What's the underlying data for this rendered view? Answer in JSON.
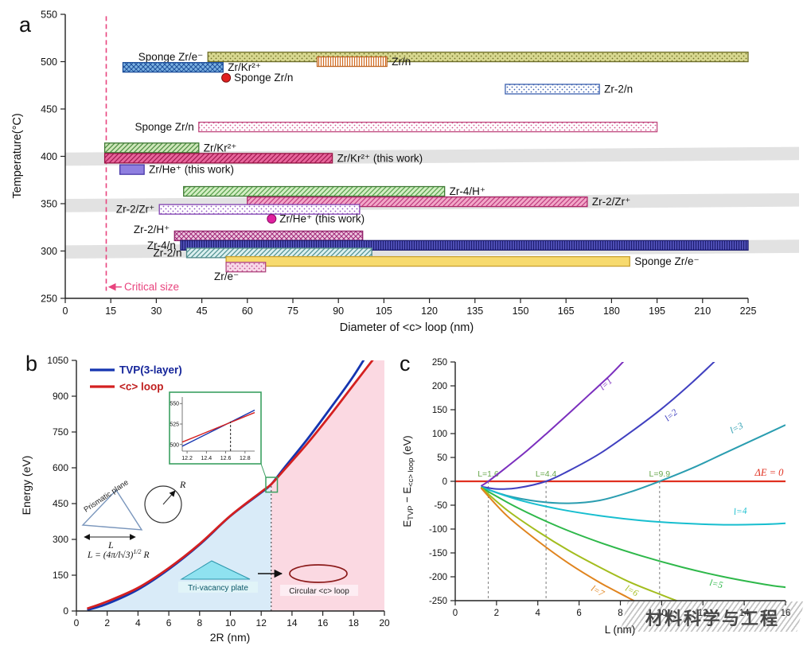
{
  "figure": {
    "panel_letters": {
      "a": "a",
      "b": "b",
      "c": "c"
    },
    "watermark": "材料科学与工程"
  },
  "chart_data": [
    {
      "id": "panel_a",
      "type": "bar",
      "xlabel": "Diameter of <c> loop (nm)",
      "ylabel": "Temperature(°C)",
      "xlim": [
        0,
        225
      ],
      "xtick_step": 15,
      "ylim": [
        250,
        550
      ],
      "ytick_step": 50,
      "grid": false,
      "critical_size": {
        "x_nm": 13.5,
        "label": "Critical size",
        "color": "#e8447e"
      },
      "shaded_bands_T": [
        [
          292,
          306
        ],
        [
          341,
          355
        ],
        [
          390,
          404
        ]
      ],
      "band_skew_T": 6,
      "patterns": {
        "stipple-olive": {
          "type": "dots",
          "bg": "#d8d890",
          "fg": "#70702a"
        },
        "cross-blue": {
          "type": "cross",
          "bg": "#7db3e2",
          "fg": "#1d4e9a"
        },
        "vlines-orange": {
          "type": "vlines",
          "bg": "#ffffff",
          "fg": "#d2691e"
        },
        "stipple-blue": {
          "type": "dots",
          "bg": "#ffffff",
          "fg": "#3a5fae"
        },
        "stipple-pink": {
          "type": "dots",
          "bg": "#ffffff",
          "fg": "#d2538c"
        },
        "diag-green": {
          "type": "diag",
          "bg": "#cfe7ba",
          "fg": "#4a8c3f"
        },
        "diag-crimson": {
          "type": "diag",
          "bg": "#e8669c",
          "fg": "#a01850"
        },
        "diag-green2": {
          "type": "diag",
          "bg": "#d4eec4",
          "fg": "#55a04a"
        },
        "diag-pink": {
          "type": "diag",
          "bg": "#f2a8c8",
          "fg": "#c03c80"
        },
        "stipple-purple": {
          "type": "dots",
          "bg": "#ffffff",
          "fg": "#8f4fc0"
        },
        "cross-pink": {
          "type": "cross",
          "bg": "#efc8e0",
          "fg": "#a02878"
        },
        "vlines-navy": {
          "type": "vlines",
          "bg": "#5353bb",
          "fg": "#1d1d70"
        },
        "diag-teal": {
          "type": "diag",
          "bg": "#dcf0f0",
          "fg": "#4f9090"
        },
        "stipple-pink2": {
          "type": "dots",
          "bg": "#f8d8e8",
          "fg": "#c05090"
        }
      },
      "bars": [
        {
          "label": "Sponge Zr/e⁻",
          "range_nm": [
            47,
            225
          ],
          "T": 505,
          "pattern": "stipple-olive",
          "edge": "#6e6e2a",
          "side": "left"
        },
        {
          "label": "Zr/Kr²⁺",
          "range_nm": [
            19,
            52
          ],
          "T": 494,
          "pattern": "cross-blue",
          "edge": "#1d4e9a",
          "side": "right"
        },
        {
          "label": "Zr/n",
          "range_nm": [
            83,
            106
          ],
          "T": 500,
          "pattern": "vlines-orange",
          "edge": "#c06a28",
          "side": "right"
        },
        {
          "label": "Zr-2/n",
          "range_nm": [
            145,
            176
          ],
          "T": 471,
          "pattern": "stipple-blue",
          "edge": "#3a5fae",
          "side": "right"
        },
        {
          "label": "Sponge Zr/n",
          "range_nm": [
            44,
            195
          ],
          "T": 431,
          "pattern": "stipple-pink",
          "edge": "#c0487e",
          "side": "left"
        },
        {
          "label": "Zr/Kr²⁺",
          "range_nm": [
            13,
            44
          ],
          "T": 409,
          "pattern": "diag-green",
          "edge": "#3f7a35",
          "side": "right"
        },
        {
          "label": "Zr/Kr²⁺ (this work)",
          "range_nm": [
            13,
            88
          ],
          "T": 398,
          "pattern": "diag-crimson",
          "edge": "#991445",
          "side": "right"
        },
        {
          "label": "Zr/He⁺ (this work)",
          "range_nm": [
            18,
            26
          ],
          "T": 386,
          "fill": "#8f7fe0",
          "edge": "#4838a8",
          "side": "right"
        },
        {
          "label": "Zr-4/H⁺",
          "range_nm": [
            39,
            125
          ],
          "T": 363,
          "pattern": "diag-green2",
          "edge": "#3f7a35",
          "side": "right"
        },
        {
          "label": "Zr-2/Zr⁺",
          "range_nm": [
            60,
            172
          ],
          "T": 352,
          "pattern": "diag-pink",
          "edge": "#ad2668",
          "side": "right"
        },
        {
          "label": "Zr-2/Zr⁺",
          "range_nm": [
            31,
            97
          ],
          "T": 344,
          "pattern": "stipple-purple",
          "edge": "#8040b0",
          "side": "left"
        },
        {
          "label": "Zr-2/H⁺",
          "range_nm": [
            36,
            98
          ],
          "T": 316,
          "pattern": "cross-pink",
          "edge": "#902068",
          "side": "left",
          "dy": -8
        },
        {
          "label": "Zr-4/n",
          "range_nm": [
            38,
            225
          ],
          "T": 306,
          "pattern": "vlines-navy",
          "edge": "#1d1d70",
          "side": "left"
        },
        {
          "label": "Zr-2/n",
          "range_nm": [
            40,
            101
          ],
          "T": 298,
          "pattern": "diag-teal",
          "edge": "#4f8888",
          "side": "left"
        },
        {
          "label": "Sponge Zr/e⁻",
          "range_nm": [
            53,
            186
          ],
          "T": 289,
          "fill": "#f7da6e",
          "edge": "#c8a030",
          "side": "right"
        },
        {
          "label": "Zr/e⁻",
          "range_nm": [
            53,
            66
          ],
          "T": 283,
          "pattern": "stipple-pink2",
          "edge": "#b04880",
          "side": "left",
          "dx": 22,
          "dy": 12
        }
      ],
      "points": [
        {
          "label": "Sponge Zr/n",
          "x_nm": 53,
          "T": 483,
          "color": "#e02020",
          "edge": "#7a1010"
        },
        {
          "label": "Zr/He⁺ (this work)",
          "x_nm": 68,
          "T": 334,
          "color": "#e020a0",
          "edge": "#8a0a60"
        }
      ]
    },
    {
      "id": "panel_b",
      "type": "line",
      "xlabel": "2R (nm)",
      "ylabel": "Energy (eV)",
      "xlim": [
        0,
        20
      ],
      "xtick_step": 2,
      "ylim": [
        0,
        1050
      ],
      "ytick_step": 150,
      "legend": [
        {
          "label": "TVP(3-layer)",
          "color": "#1535b0"
        },
        {
          "label": "<c> loop",
          "color": "#d42020"
        }
      ],
      "crossing": {
        "x": 12.65,
        "y": 531
      },
      "region_colors": {
        "left": "#d9ebf8",
        "right": "#fbd9e2"
      },
      "series": [
        {
          "name": "TVP(3-layer)",
          "color": "#1535b0",
          "points": [
            [
              0.7,
              4
            ],
            [
              2,
              30
            ],
            [
              4,
              90
            ],
            [
              6,
              175
            ],
            [
              8,
              278
            ],
            [
              10,
              398
            ],
            [
              12,
              496
            ],
            [
              12.65,
              531
            ],
            [
              13.5,
              600
            ],
            [
              15,
              720
            ],
            [
              16.5,
              850
            ],
            [
              18,
              985
            ],
            [
              19.4,
              1130
            ]
          ]
        },
        {
          "name": "<c> loop",
          "color": "#d42020",
          "points": [
            [
              0.7,
              10
            ],
            [
              2,
              40
            ],
            [
              4,
              97
            ],
            [
              6,
              180
            ],
            [
              8,
              281
            ],
            [
              10,
              399
            ],
            [
              12,
              499
            ],
            [
              12.65,
              531
            ],
            [
              13.5,
              592
            ],
            [
              15,
              702
            ],
            [
              16.5,
              822
            ],
            [
              18,
              948
            ],
            [
              20,
              1115
            ]
          ]
        }
      ],
      "inset": {
        "xlim": [
          12.15,
          12.9
        ],
        "ylim": [
          492,
          558
        ],
        "xticks": [
          12.2,
          12.4,
          12.6,
          12.8
        ],
        "yticks": [
          500,
          525,
          550
        ],
        "lines": [
          {
            "color": "#1535b0",
            "points": [
              [
                12.15,
                498
              ],
              [
                12.9,
                542
              ]
            ]
          },
          {
            "color": "#d42020",
            "points": [
              [
                12.15,
                503
              ],
              [
                12.9,
                539
              ]
            ]
          }
        ],
        "dash_x": 12.65,
        "border": "#3aa060"
      },
      "annotations": {
        "prismatic_label": "Prismatic plane",
        "L_label": "L",
        "R_label": "R",
        "formula_pre": "L = (4π/l√3)",
        "formula_sup": "1/2",
        "formula_post": " R",
        "tvp_label": "Tri-vacancy plate",
        "loop_label": "Circular <c> loop"
      }
    },
    {
      "id": "panel_c",
      "type": "line",
      "xlabel": "L (nm)",
      "ylabel_parts": [
        {
          "t": "E"
        },
        {
          "t": "TVP",
          "s": 1
        },
        {
          "t": " − E"
        },
        {
          "t": "<c> loop",
          "s": 1
        },
        {
          "t": " (eV)"
        }
      ],
      "xlim": [
        0,
        16
      ],
      "xtick_step": 2,
      "ylim": [
        -250,
        250
      ],
      "ytick_step": 50,
      "zero_line": {
        "color": "#e03020",
        "label": "ΔE = 0"
      },
      "dashed_x": [
        {
          "x": 1.6,
          "label": "L=1.6"
        },
        {
          "x": 4.4,
          "label": "L=4.4"
        },
        {
          "x": 9.9,
          "label": "L=9.9"
        }
      ],
      "dash_label_color": "#6aa84f",
      "series": [
        {
          "name": "l=1",
          "color": "#7b2fbe",
          "label_at": [
            7.15,
            190
          ],
          "label_rot": -42,
          "points": [
            [
              1.25,
              -10
            ],
            [
              1.6,
              0
            ],
            [
              2.5,
              30
            ],
            [
              3.5,
              65
            ],
            [
              4.5,
              103
            ],
            [
              5.5,
              142
            ],
            [
              6.5,
              182
            ],
            [
              7.5,
              222
            ],
            [
              8.3,
              258
            ]
          ]
        },
        {
          "name": "l=2",
          "color": "#4040c0",
          "label_at": [
            10.3,
            125
          ],
          "label_rot": -40,
          "points": [
            [
              1.25,
              -11
            ],
            [
              2,
              -16
            ],
            [
              3,
              -14
            ],
            [
              4.4,
              0
            ],
            [
              5.5,
              22
            ],
            [
              7,
              58
            ],
            [
              8.5,
              103
            ],
            [
              10,
              152
            ],
            [
              11.5,
              208
            ],
            [
              12.9,
              265
            ]
          ]
        },
        {
          "name": "l=3",
          "color": "#2a9db0",
          "label_at": [
            13.4,
            100
          ],
          "label_rot": -27,
          "points": [
            [
              1.25,
              -12
            ],
            [
              2.5,
              -30
            ],
            [
              4,
              -42
            ],
            [
              5.5,
              -46
            ],
            [
              7,
              -40
            ],
            [
              8.5,
              -22
            ],
            [
              9.9,
              0
            ],
            [
              11.5,
              28
            ],
            [
              13,
              58
            ],
            [
              14.5,
              88
            ],
            [
              16,
              118
            ]
          ]
        },
        {
          "name": "l=4",
          "color": "#17becf",
          "label_at": [
            13.5,
            -70
          ],
          "label_rot": -5,
          "points": [
            [
              1.25,
              -12
            ],
            [
              3,
              -38
            ],
            [
              5,
              -58
            ],
            [
              7,
              -72
            ],
            [
              9,
              -82
            ],
            [
              11,
              -88
            ],
            [
              13,
              -91
            ],
            [
              15,
              -90
            ],
            [
              16,
              -88
            ]
          ]
        },
        {
          "name": "l=5",
          "color": "#2eb84a",
          "label_at": [
            12.3,
            -218
          ],
          "label_rot": 12,
          "points": [
            [
              1.25,
              -13
            ],
            [
              3,
              -55
            ],
            [
              5,
              -95
            ],
            [
              7,
              -128
            ],
            [
              9,
              -156
            ],
            [
              11,
              -180
            ],
            [
              13,
              -200
            ],
            [
              15,
              -216
            ],
            [
              16,
              -222
            ]
          ]
        },
        {
          "name": "l=6",
          "color": "#a3bd1e",
          "label_at": [
            8.2,
            -228
          ],
          "label_rot": 28,
          "points": [
            [
              1.25,
              -13
            ],
            [
              2.5,
              -60
            ],
            [
              4,
              -105
            ],
            [
              5.5,
              -145
            ],
            [
              7,
              -180
            ],
            [
              8.5,
              -212
            ],
            [
              10,
              -238
            ],
            [
              11.2,
              -258
            ]
          ]
        },
        {
          "name": "l=7",
          "color": "#e0841e",
          "label_at": [
            6.55,
            -228
          ],
          "label_rot": 30,
          "points": [
            [
              1.25,
              -14
            ],
            [
              2.5,
              -72
            ],
            [
              4,
              -125
            ],
            [
              5.5,
              -172
            ],
            [
              7,
              -212
            ],
            [
              8.3,
              -242
            ],
            [
              9.2,
              -262
            ]
          ]
        }
      ]
    }
  ]
}
